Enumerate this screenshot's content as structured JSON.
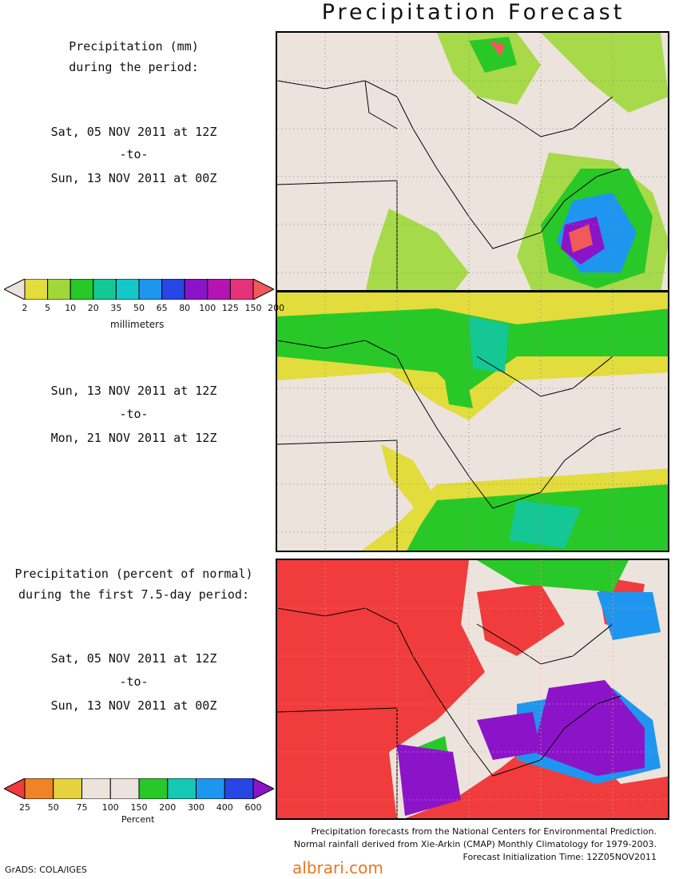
{
  "title": "Precipitation Forecast",
  "panel1": {
    "heading": [
      "Precipitation (mm)",
      "during the period:"
    ],
    "start": "Sat, 05 NOV 2011 at 12Z",
    "sep": "-to-",
    "end": "Sun, 13 NOV 2011 at 00Z"
  },
  "panel2": {
    "start": "Sun, 13 NOV 2011 at 12Z",
    "sep": "-to-",
    "end": "Mon, 21 NOV 2011 at 12Z"
  },
  "panel3": {
    "heading": [
      "Precipitation (percent of normal)",
      "during the first 7.5-day period:"
    ],
    "start": "Sat, 05 NOV 2011 at 12Z",
    "sep": "-to-",
    "end": "Sun, 13 NOV 2011 at 00Z"
  },
  "mm_scale": {
    "labels": [
      "2",
      "5",
      "10",
      "20",
      "35",
      "50",
      "65",
      "80",
      "100",
      "125",
      "150",
      "200"
    ],
    "colors": [
      "#ece3dc",
      "#e2dc3c",
      "#a0d83a",
      "#28c828",
      "#14c896",
      "#14c8c8",
      "#1e96f0",
      "#2846e6",
      "#8c14c8",
      "#b414b4",
      "#e6327a",
      "#f05a5a"
    ],
    "unit": "millimeters"
  },
  "pct_scale": {
    "labels": [
      "25",
      "50",
      "75",
      "100",
      "150",
      "200",
      "300",
      "400",
      "600"
    ],
    "colors": [
      "#f03c3c",
      "#f08228",
      "#e6d23c",
      "#ece3dc",
      "#ece3dc",
      "#28c828",
      "#14c8b4",
      "#1e96f0",
      "#2846e6",
      "#8c14c8"
    ],
    "unit": "Percent"
  },
  "credits": [
    "Precipitation forecasts from the National Centers for Environmental Prediction.",
    "Normal rainfall derived from Xie-Arkin (CMAP) Monthly Climatology for 1979-2003.",
    "Forecast Initialization Time: 12Z05NOV2011"
  ],
  "software": "GrADS: COLA/IGES",
  "watermark": "albrari.com"
}
